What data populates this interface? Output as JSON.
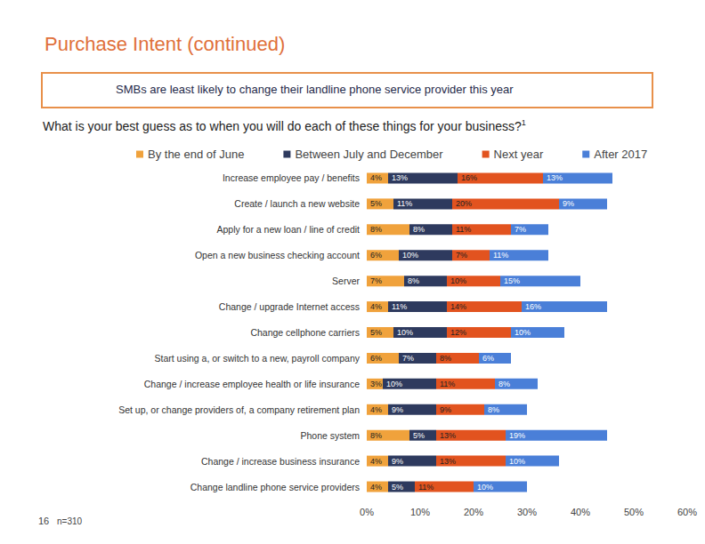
{
  "chart_data": {
    "type": "bar",
    "orientation": "horizontal",
    "stacked": true,
    "data_labels": true,
    "grid": false,
    "legend": "top",
    "title": "Purchase Intent (continued)",
    "subtitle": "SMBs are least likely to change their landline phone service provider this year",
    "question": "What is your best guess as to when you will do each of these things for your business?",
    "question_footnote": "1",
    "page_number": "16",
    "sample_size": "n=310",
    "categories": [
      "Increase employee pay / benefits",
      "Create / launch a new website",
      "Apply for a new loan / line of credit",
      "Open a new business checking account",
      "Server",
      "Change / upgrade Internet access",
      "Change cellphone carriers",
      "Start using a, or switch to a new, payroll company",
      "Change / increase employee health or life insurance",
      "Set up, or change providers of, a company retirement plan",
      "Phone system",
      "Change / increase business insurance",
      "Change landline phone service providers"
    ],
    "series": [
      {
        "name": "By the end of June",
        "color": "#F0A23C",
        "values": [
          4,
          5,
          8,
          6,
          7,
          4,
          5,
          6,
          3,
          4,
          8,
          4,
          4
        ],
        "value_labels": [
          "4%",
          "5%",
          "8%",
          "6%",
          "7%",
          "4%",
          "5%",
          "6%",
          "3%",
          "4%",
          "8%",
          "4%",
          "4%"
        ]
      },
      {
        "name": "Between July and December",
        "color": "#2E3A5E",
        "values": [
          13,
          11,
          8,
          10,
          8,
          11,
          10,
          7,
          10,
          9,
          5,
          9,
          5
        ],
        "value_labels": [
          "13%",
          "11%",
          "8%",
          "10%",
          "8%",
          "11%",
          "10%",
          "7%",
          "10%",
          "9%",
          "5%",
          "9%",
          "5%"
        ]
      },
      {
        "name": "Next year",
        "color": "#E2531F",
        "values": [
          16,
          20,
          11,
          7,
          10,
          14,
          12,
          8,
          11,
          9,
          13,
          13,
          11
        ],
        "value_labels": [
          "16%",
          "20%",
          "11%",
          "7%",
          "10%",
          "14%",
          "12%",
          "8%",
          "11%",
          "9%",
          "13%",
          "13%",
          "11%"
        ]
      },
      {
        "name": "After 2017",
        "color": "#4A7FD8",
        "values": [
          13,
          9,
          7,
          11,
          15,
          16,
          10,
          6,
          8,
          8,
          19,
          10,
          10
        ],
        "value_labels": [
          "13%",
          "9%",
          "7%",
          "11%",
          "15%",
          "16%",
          "10%",
          "6%",
          "8%",
          "8%",
          "19%",
          "10%",
          "10%"
        ]
      }
    ],
    "xlim": [
      0,
      60
    ],
    "xticks": [
      {
        "value": 0,
        "label": "0%"
      },
      {
        "value": 10,
        "label": "10%"
      },
      {
        "value": 20,
        "label": "20%"
      },
      {
        "value": 30,
        "label": "30%"
      },
      {
        "value": 40,
        "label": "40%"
      },
      {
        "value": 50,
        "label": "50%"
      },
      {
        "value": 60,
        "label": "60%"
      }
    ]
  }
}
